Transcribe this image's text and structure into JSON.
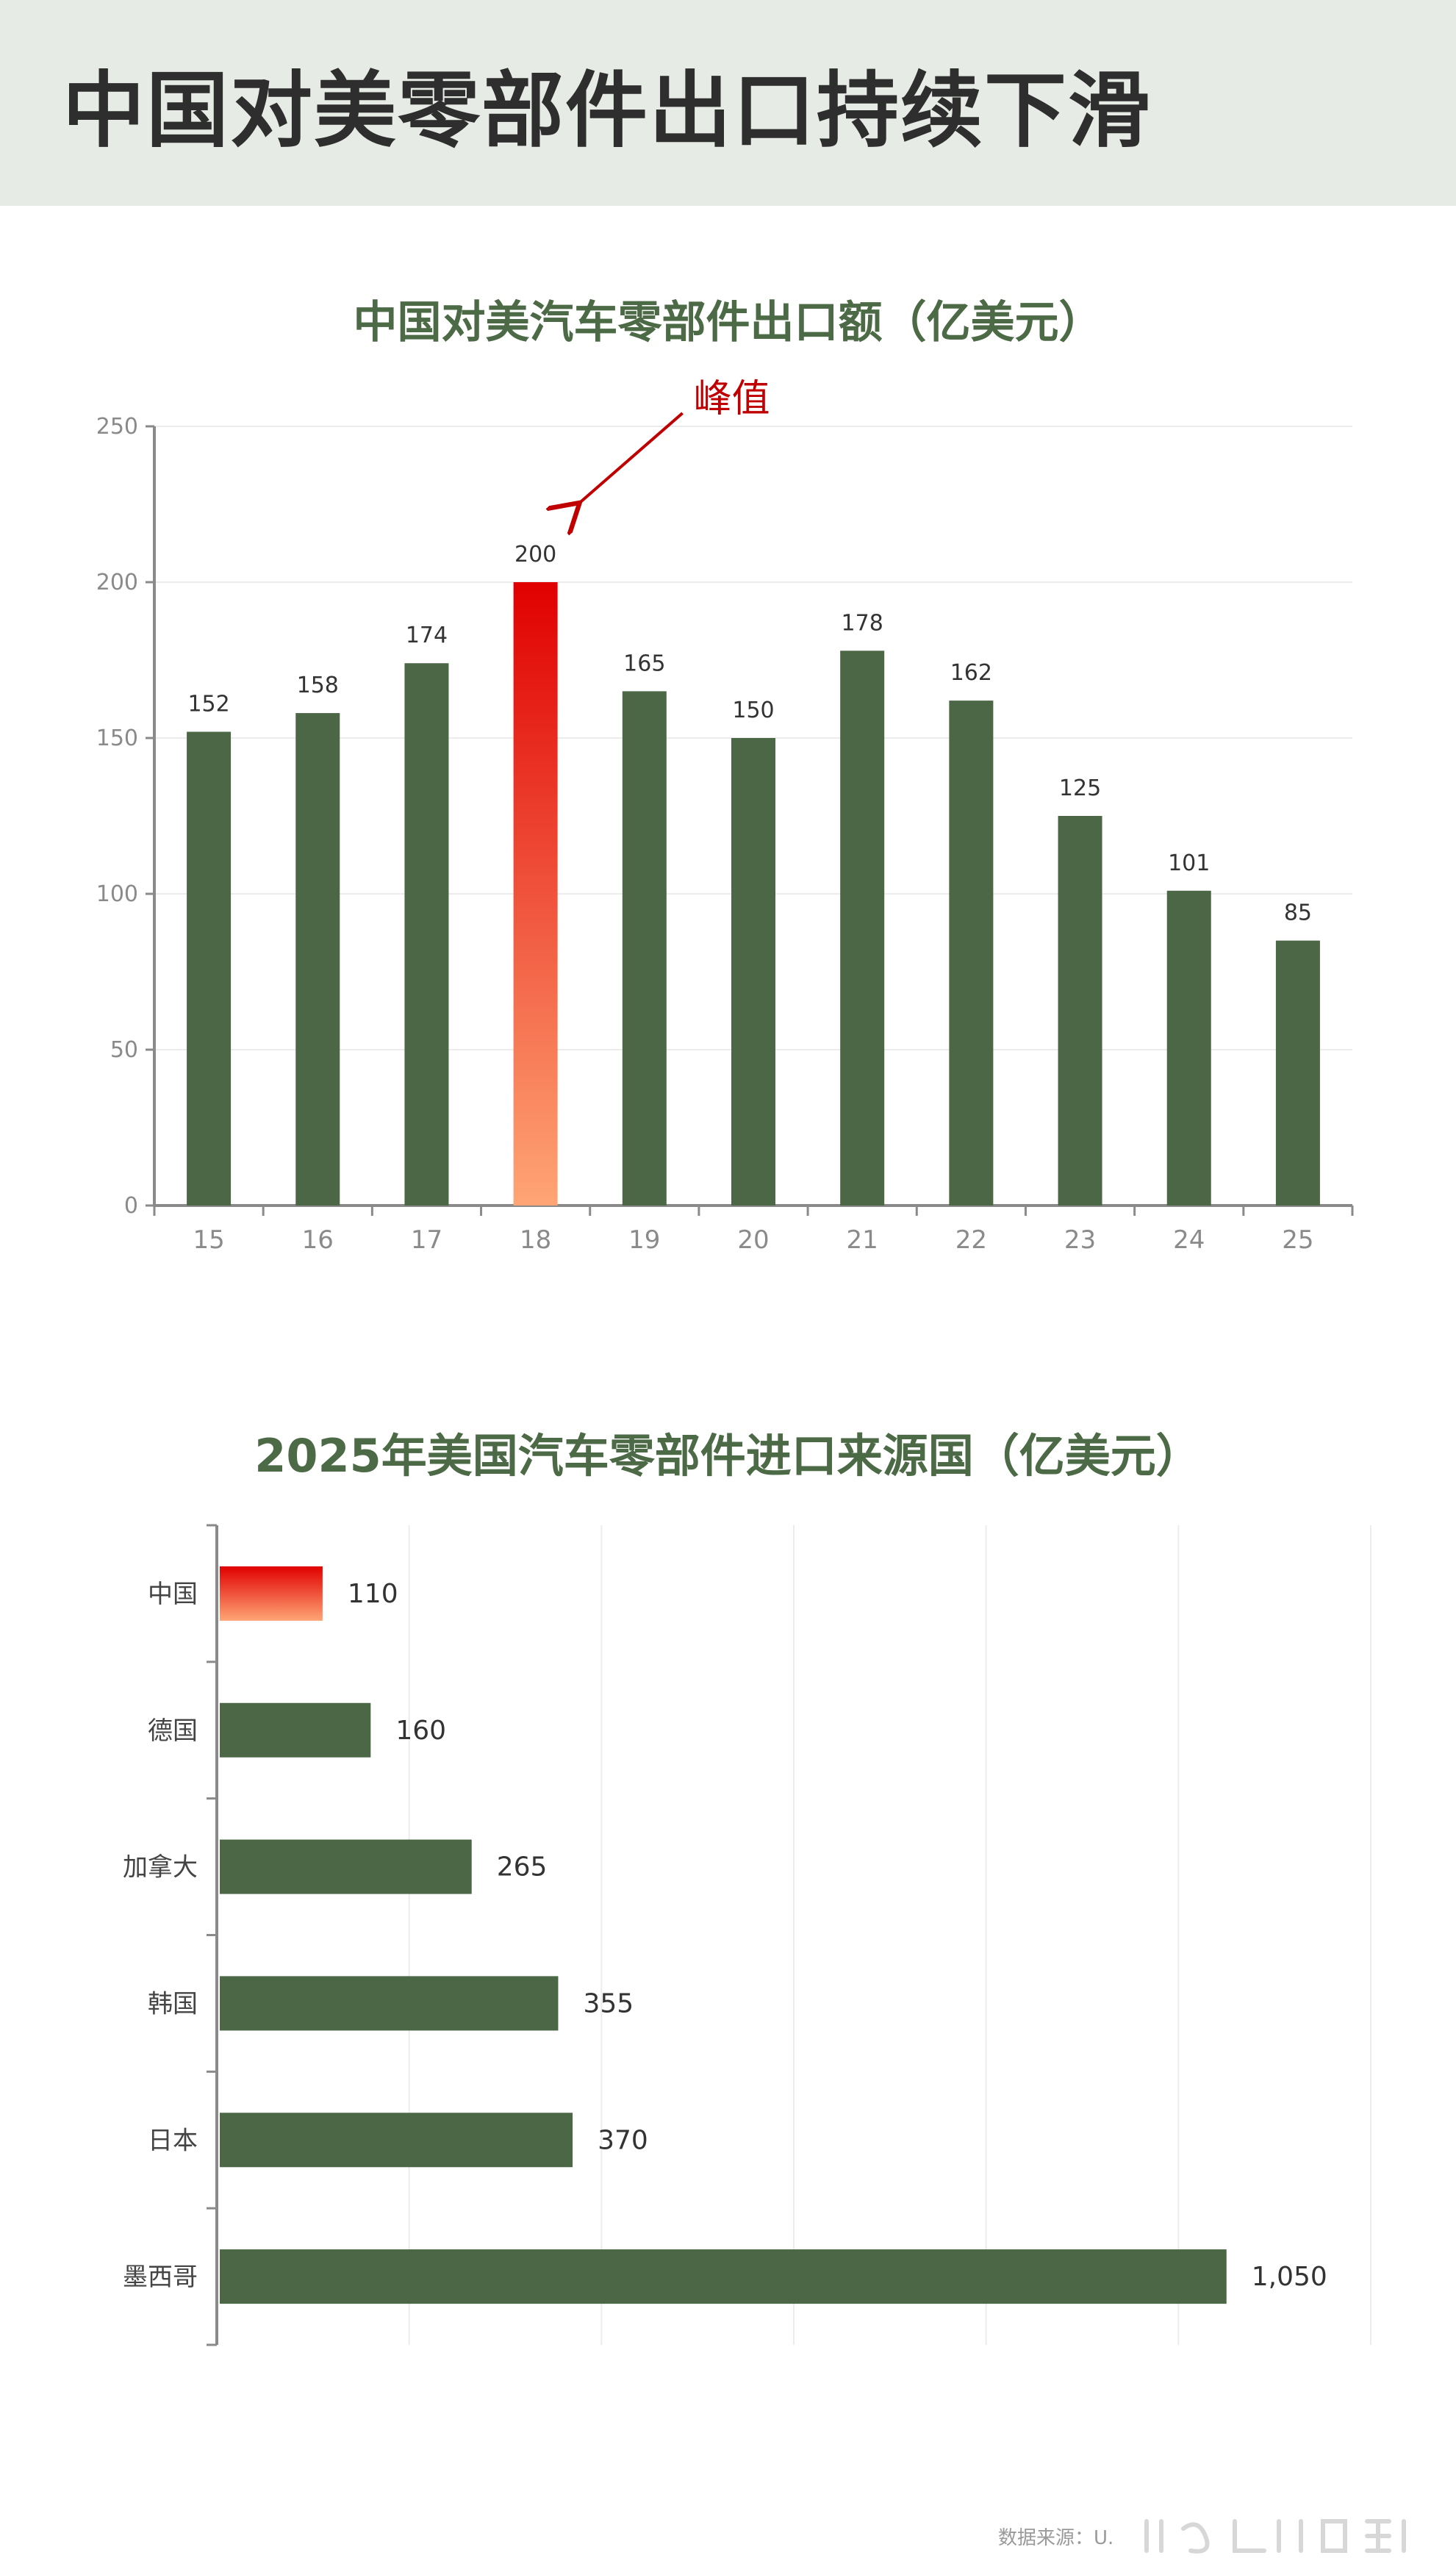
{
  "page": {
    "title": "中国对美零部件出口持续下滑"
  },
  "chart_data": [
    {
      "type": "bar",
      "title": "中国对美汽车零部件出口额（亿美元）",
      "categories": [
        "15",
        "16",
        "17",
        "18",
        "19",
        "20",
        "21",
        "22",
        "23",
        "24",
        "25"
      ],
      "values": [
        152,
        158,
        174,
        200,
        165,
        150,
        178,
        162,
        125,
        101,
        85
      ],
      "ylim": [
        0,
        250
      ],
      "yticks": [
        0,
        50,
        100,
        150,
        200,
        250
      ],
      "highlight_index": 3,
      "annotation": {
        "text": "峰值",
        "target_index": 3
      },
      "grid": true,
      "colors": {
        "bar": "#4b6745",
        "highlight_top": "#e00000",
        "highlight_bottom": "#ffa575",
        "annotation": "#c00000"
      }
    },
    {
      "type": "bar",
      "orientation": "horizontal",
      "title": "2025年美国汽车零部件进口来源国（亿美元）",
      "categories": [
        "中国",
        "德国",
        "加拿大",
        "韩国",
        "日本",
        "墨西哥"
      ],
      "values": [
        110,
        160,
        265,
        355,
        370,
        1050
      ],
      "value_labels": [
        "110",
        "160",
        "265",
        "355",
        "370",
        "1,050"
      ],
      "xlim": [
        0,
        1200
      ],
      "highlight_index": 0,
      "grid": true,
      "colors": {
        "bar": "#4b6745",
        "highlight_top": "#e00000",
        "highlight_bottom": "#ffa575"
      }
    }
  ],
  "footer": {
    "source": "数据来源：U."
  }
}
